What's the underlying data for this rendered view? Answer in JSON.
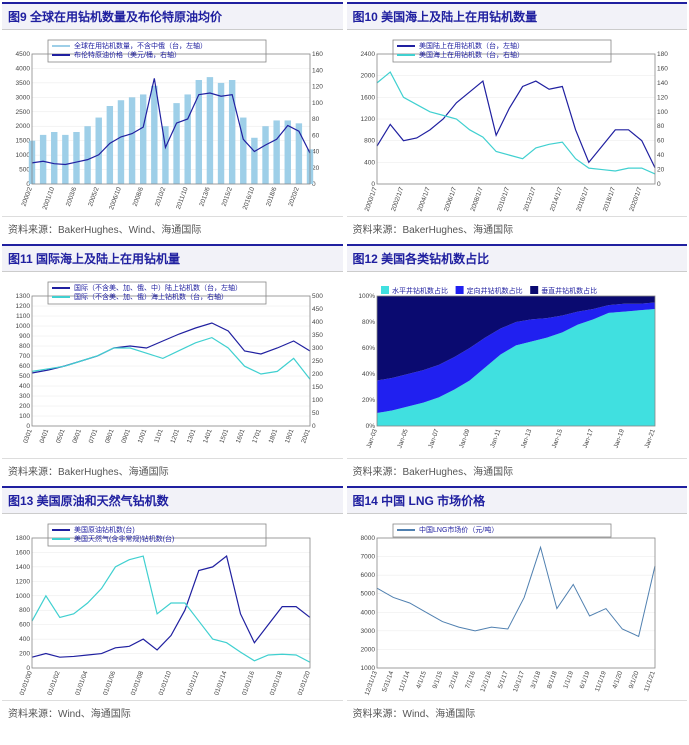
{
  "panels": [
    {
      "id": "fig9",
      "title": "图9 全球在用钻机数量及布伦特原油均价",
      "source": "资料来源：BakerHughes、Wind、海通国际",
      "chart": {
        "type": "combo-bar-line",
        "xlabels": [
          "2000/2",
          "2000/12",
          "2001/10",
          "2002/8",
          "2003/6",
          "2004/4",
          "2005/2",
          "2005/12",
          "2006/10",
          "2007/8",
          "2008/6",
          "2009/4",
          "2010/2",
          "2010/12",
          "2011/10",
          "2012/8",
          "2013/6",
          "2014/4",
          "2015/2",
          "2015/12",
          "2016/10",
          "2017/8",
          "2018/6",
          "2019/4",
          "2020/2",
          "2020/12"
        ],
        "left_axis": {
          "min": 0,
          "max": 4500,
          "step": 500,
          "label": ""
        },
        "right_axis": {
          "min": 0,
          "max": 160,
          "step": 20,
          "label": ""
        },
        "series": [
          {
            "name": "全球在用钻机数量，不含中俄（台，左轴）",
            "kind": "bar",
            "axis": "left",
            "color": "#9ecfe8",
            "data": [
              1500,
              1700,
              1800,
              1700,
              1800,
              2000,
              2300,
              2700,
              2900,
              3000,
              3100,
              3400,
              2000,
              2800,
              3100,
              3600,
              3700,
              3500,
              3600,
              2300,
              1600,
              2000,
              2200,
              2200,
              2100,
              1200
            ]
          },
          {
            "name": "布伦特原油价格（美元/桶，右轴）",
            "kind": "line",
            "axis": "right",
            "color": "#2020a0",
            "width": 1.2,
            "data": [
              26,
              28,
              25,
              24,
              27,
              30,
              36,
              50,
              58,
              62,
              70,
              130,
              45,
              75,
              80,
              110,
              112,
              108,
              110,
              55,
              40,
              48,
              55,
              72,
              65,
              38
            ]
          }
        ],
        "background_color": "#ffffff",
        "grid_color": "#e0e0e0"
      }
    },
    {
      "id": "fig10",
      "title": "图10 美国海上及陆上在用钻机数量",
      "source": "资料来源：BakerHughes、海通国际",
      "chart": {
        "type": "dual-line",
        "xlabels": [
          "2000/1/7",
          "2001/1/7",
          "2002/1/7",
          "2003/1/7",
          "2004/1/7",
          "2005/1/7",
          "2006/1/7",
          "2007/1/7",
          "2008/1/7",
          "2009/1/7",
          "2010/1/7",
          "2011/1/7",
          "2012/1/7",
          "2013/1/7",
          "2014/1/7",
          "2015/1/7",
          "2016/1/7",
          "2017/1/7",
          "2018/1/7",
          "2019/1/7",
          "2020/1/7",
          "2021/1/7"
        ],
        "left_axis": {
          "min": 0,
          "max": 2400,
          "step": 400
        },
        "right_axis": {
          "min": 0,
          "max": 180,
          "step": 20
        },
        "series": [
          {
            "name": "美国陆上在用钻机数（台，左轴）",
            "kind": "line",
            "axis": "left",
            "color": "#2020a0",
            "width": 1.2,
            "data": [
              700,
              1100,
              800,
              850,
              1000,
              1200,
              1500,
              1700,
              1900,
              900,
              1400,
              1800,
              1900,
              1750,
              1800,
              1000,
              400,
              700,
              1000,
              1000,
              800,
              300
            ]
          },
          {
            "name": "美国海上在用钻机数（台，右轴）",
            "kind": "line",
            "axis": "right",
            "color": "#40d0d0",
            "width": 1.2,
            "data": [
              140,
              155,
              120,
              110,
              100,
              95,
              90,
              75,
              65,
              45,
              40,
              35,
              50,
              55,
              58,
              35,
              22,
              20,
              18,
              22,
              22,
              14
            ]
          }
        ],
        "background_color": "#ffffff"
      }
    },
    {
      "id": "fig11",
      "title": "图11 国际海上及陆上在用钻机量",
      "source": "资料来源：BakerHughes、海通国际",
      "chart": {
        "type": "dual-line",
        "xlabels": [
          "0301",
          "0401",
          "0501",
          "0601",
          "0701",
          "0801",
          "0901",
          "1001",
          "1101",
          "1201",
          "1301",
          "1401",
          "1501",
          "1601",
          "1701",
          "1801",
          "1901",
          "2001"
        ],
        "left_axis": {
          "min": 0,
          "max": 1300,
          "step": 100
        },
        "right_axis": {
          "min": 0,
          "max": 500,
          "step": 50
        },
        "series": [
          {
            "name": "国际（不含美、加、俄、中）陆上钻机数（台，左轴）",
            "kind": "line",
            "axis": "left",
            "color": "#2020a0",
            "width": 1.2,
            "data": [
              530,
              560,
              600,
              650,
              700,
              780,
              800,
              780,
              850,
              920,
              980,
              1030,
              950,
              750,
              720,
              780,
              850,
              750
            ]
          },
          {
            "name": "国际（不含美、加、俄）海上钻机数（台，右轴）",
            "kind": "line",
            "axis": "right",
            "color": "#40d0d0",
            "width": 1.2,
            "data": [
              210,
              220,
              230,
              250,
              270,
              300,
              300,
              280,
              260,
              290,
              320,
              340,
              300,
              230,
              200,
              210,
              260,
              180
            ]
          }
        ],
        "background_color": "#ffffff"
      }
    },
    {
      "id": "fig12",
      "title": "图12 美国各类钻机数占比",
      "source": "资料来源：BakerHughes、海通国际",
      "chart": {
        "type": "stacked-area",
        "xlabels": [
          "Jan-03",
          "Jan-04",
          "Jan-05",
          "Jan-06",
          "Jan-07",
          "Jan-08",
          "Jan-09",
          "Jan-10",
          "Jan-11",
          "Jan-12",
          "Jan-13",
          "Jan-14",
          "Jan-15",
          "Jan-16",
          "Jan-17",
          "Jan-18",
          "Jan-19",
          "Jan-20",
          "Jan-21"
        ],
        "left_axis": {
          "min": 0,
          "max": 100,
          "step": 20,
          "suffix": "%"
        },
        "series": [
          {
            "name": "水平井钻机数占比",
            "color": "#40e0e0",
            "data": [
              10,
              12,
              15,
              18,
              22,
              28,
              35,
              45,
              55,
              62,
              65,
              68,
              72,
              78,
              82,
              87,
              88,
              89,
              90
            ]
          },
          {
            "name": "定向井钻机数占比",
            "color": "#2020f0",
            "data": [
              25,
              25,
              25,
              25,
              25,
              25,
              25,
              23,
              20,
              18,
              17,
              15,
              13,
              10,
              8,
              6,
              6,
              5,
              5
            ]
          },
          {
            "name": "垂直井钻机数占比",
            "color": "#0a0a70",
            "data": [
              65,
              63,
              60,
              57,
              53,
              47,
              40,
              32,
              25,
              20,
              18,
              17,
              15,
              12,
              10,
              7,
              6,
              6,
              5
            ]
          }
        ],
        "background_color": "#ffffff"
      }
    },
    {
      "id": "fig13",
      "title": "图13 美国原油和天然气钻机数",
      "source": "资料来源：Wind、海通国际",
      "chart": {
        "type": "dual-line",
        "xlabels": [
          "01/01/00",
          "01/01/01",
          "01/01/02",
          "01/01/03",
          "01/01/04",
          "01/01/05",
          "01/01/06",
          "01/01/07",
          "01/01/08",
          "01/01/09",
          "01/01/10",
          "01/01/11",
          "01/01/12",
          "01/01/13",
          "01/01/14",
          "01/01/15",
          "01/01/16",
          "01/01/17",
          "01/01/18",
          "01/01/19",
          "01/01/20"
        ],
        "left_axis": {
          "min": 0,
          "max": 1800,
          "step": 200
        },
        "series": [
          {
            "name": "美国原油钻机数(台)",
            "kind": "line",
            "axis": "left",
            "color": "#2020a0",
            "width": 1.2,
            "data": [
              150,
              200,
              150,
              160,
              180,
              200,
              280,
              300,
              400,
              250,
              450,
              800,
              1350,
              1400,
              1550,
              750,
              350,
              600,
              850,
              850,
              700
            ]
          },
          {
            "name": "美国天然气(含非常规)钻机数(台)",
            "kind": "line",
            "axis": "left",
            "color": "#40d0d0",
            "width": 1.2,
            "data": [
              650,
              1000,
              700,
              750,
              900,
              1100,
              1400,
              1500,
              1550,
              750,
              900,
              900,
              650,
              400,
              350,
              220,
              100,
              180,
              190,
              180,
              80
            ]
          }
        ],
        "background_color": "#ffffff"
      }
    },
    {
      "id": "fig14",
      "title": "图14 中国 LNG 市场价格",
      "source": "资料来源：Wind、海通国际",
      "chart": {
        "type": "line",
        "xlabels": [
          "12/31/13",
          "5/31/14",
          "11/1/14",
          "4/1/15",
          "9/1/15",
          "2/1/16",
          "7/1/16",
          "12/1/16",
          "5/1/17",
          "10/1/17",
          "3/1/18",
          "8/1/18",
          "1/1/19",
          "6/1/19",
          "11/1/19",
          "4/1/20",
          "9/1/20",
          "11/1/21"
        ],
        "left_axis": {
          "min": 1000,
          "max": 8000,
          "step": 1000
        },
        "series": [
          {
            "name": "中国LNG市场价（元/吨）",
            "kind": "line",
            "axis": "left",
            "color": "#5080b0",
            "width": 1.0,
            "data": [
              5300,
              4800,
              4500,
              4000,
              3500,
              3200,
              3000,
              3200,
              3100,
              4800,
              7500,
              4200,
              5500,
              3800,
              4200,
              3100,
              2700,
              6500
            ]
          }
        ],
        "background_color": "#ffffff"
      }
    }
  ]
}
